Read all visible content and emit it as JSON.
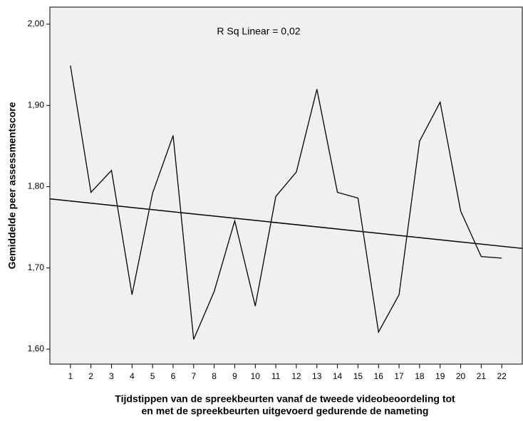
{
  "chart_data": {
    "type": "line",
    "ylabel": "Gemiddelde peer assessmentscore",
    "xlabel": [
      "Tijdstippen van de spreekbeurten vanaf de tweede videobeoordeling tot",
      "en met de spreekbeurten uitgevoerd gedurende de nameting"
    ],
    "annotation": "R Sq Linear = 0,02",
    "x": [
      1,
      2,
      3,
      4,
      5,
      6,
      7,
      8,
      9,
      10,
      11,
      12,
      13,
      14,
      15,
      16,
      17,
      18,
      19,
      20,
      21,
      22
    ],
    "series": [
      {
        "color": "#000000",
        "values": [
          1.949,
          1.793,
          1.82,
          1.667,
          1.792,
          1.863,
          1.612,
          1.671,
          1.758,
          1.653,
          1.788,
          1.818,
          1.92,
          1.793,
          1.786,
          1.621,
          1.667,
          1.856,
          1.904,
          1.77,
          1.714,
          1.712
        ]
      }
    ],
    "fit": {
      "color": "#000000",
      "x": [
        0,
        23
      ],
      "values": [
        1.785,
        1.724
      ]
    },
    "xlim": [
      0,
      23
    ],
    "xticks": [
      1,
      2,
      3,
      4,
      5,
      6,
      7,
      8,
      9,
      10,
      11,
      12,
      13,
      14,
      15,
      16,
      17,
      18,
      19,
      20,
      21,
      22
    ],
    "ylim": [
      1.5816,
      2.021
    ],
    "yticks": [
      {
        "value": 1.6,
        "label": "1,60"
      },
      {
        "value": 1.7,
        "label": "1,70"
      },
      {
        "value": 1.8,
        "label": "1,80"
      },
      {
        "value": 1.9,
        "label": "1,90"
      },
      {
        "value": 2.0,
        "label": "2,00"
      }
    ],
    "background": "#f0f0f0"
  }
}
